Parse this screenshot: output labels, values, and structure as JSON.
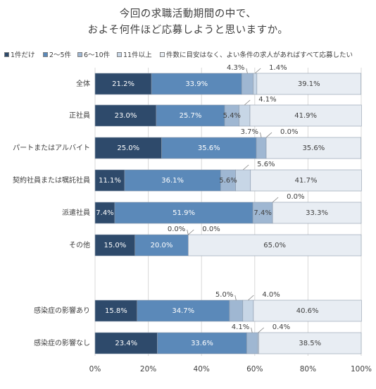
{
  "chart_data": {
    "type": "bar",
    "orientation": "horizontal",
    "stacked": true,
    "title_lines": [
      "今回の求職活動期間の中で、",
      "およそ何件ほど応募しようと思いますか。"
    ],
    "categories": [
      "全体",
      "正社員",
      "パートまたはアルバイト",
      "契約社員または嘱託社員",
      "派遣社員",
      "その他",
      "",
      "感染症の影響あり",
      "感染症の影響なし"
    ],
    "series": [
      {
        "name": "1件だけ",
        "color": "#2e4a6b",
        "values": [
          21.2,
          23.0,
          25.0,
          11.1,
          7.4,
          15.0,
          null,
          15.8,
          23.4
        ]
      },
      {
        "name": "2～5件",
        "color": "#5b89b9",
        "values": [
          33.9,
          25.7,
          35.6,
          36.1,
          51.9,
          20.0,
          null,
          34.7,
          33.6
        ]
      },
      {
        "name": "6～10件",
        "color": "#9fb7d2",
        "values": [
          4.3,
          5.4,
          3.7,
          5.6,
          7.4,
          0.0,
          null,
          5.0,
          4.1
        ]
      },
      {
        "name": "11件以上",
        "color": "#c7d6e6",
        "values": [
          1.4,
          4.1,
          0.0,
          5.6,
          0.0,
          0.0,
          null,
          4.0,
          0.4
        ]
      },
      {
        "name": "件数に目安はなく、よい条件の求人があればすべて応募したい",
        "color": "#e8edf3",
        "values": [
          39.1,
          41.9,
          35.6,
          41.7,
          33.3,
          65.0,
          null,
          40.6,
          38.5
        ]
      }
    ],
    "value_labels": [
      [
        "21.2%",
        "33.9%",
        "4.3%",
        "1.4%",
        "39.1%"
      ],
      [
        "23.0%",
        "25.7%",
        "5.4%",
        "4.1%",
        "41.9%"
      ],
      [
        "25.0%",
        "35.6%",
        "3.7%",
        "0.0%",
        "35.6%"
      ],
      [
        "11.1%",
        "36.1%",
        "5.6%",
        "5.6%",
        "41.7%"
      ],
      [
        "7.4%",
        "51.9%",
        "7.4%",
        "0.0%",
        "33.3%"
      ],
      [
        "15.0%",
        "20.0%",
        "0.0%",
        "0.0%",
        "65.0%"
      ],
      [],
      [
        "15.8%",
        "34.7%",
        "5.0%",
        "4.0%",
        "40.6%"
      ],
      [
        "23.4%",
        "33.6%",
        "4.1%",
        "0.4%",
        "38.5%"
      ]
    ],
    "x_ticks": [
      "0%",
      "20%",
      "40%",
      "60%",
      "80%",
      "100%"
    ],
    "xlim": [
      0,
      100
    ],
    "grid": true,
    "legend_position": "top"
  }
}
